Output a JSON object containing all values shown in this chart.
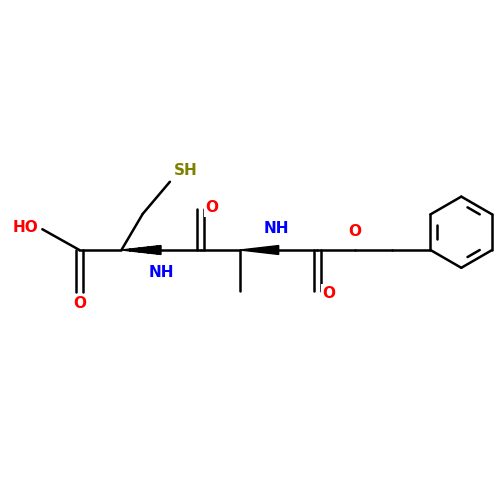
{
  "background_color": "#ffffff",
  "bond_color": "#000000",
  "bond_width": 1.8,
  "atom_colors": {
    "O": "#ff0000",
    "N": "#0000ff",
    "S": "#808000",
    "C": "#000000"
  },
  "font_size_atom": 11,
  "figsize": [
    5.0,
    5.0
  ],
  "dpi": 100,
  "xlim": [
    0,
    10
  ],
  "ylim": [
    2,
    8
  ]
}
